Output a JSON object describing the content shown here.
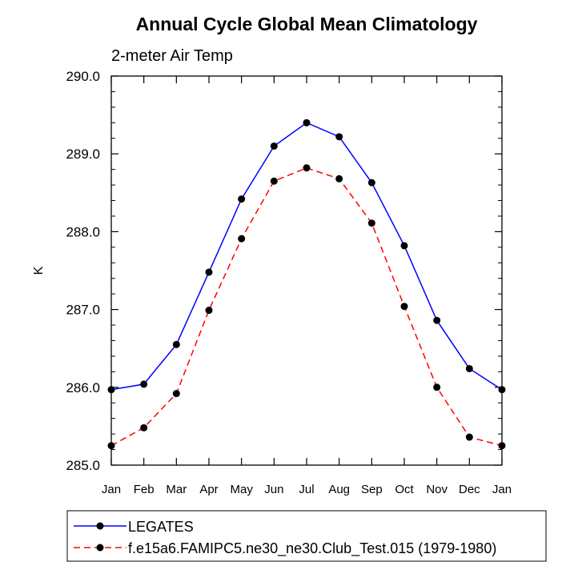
{
  "chart_data": {
    "type": "line",
    "title": "Annual Cycle Global Mean Climatology",
    "subtitle": "2-meter Air Temp",
    "ylabel": "K",
    "xlabel": "",
    "categories": [
      "Jan",
      "Feb",
      "Mar",
      "Apr",
      "May",
      "Jun",
      "Jul",
      "Aug",
      "Sep",
      "Oct",
      "Nov",
      "Dec",
      "Jan"
    ],
    "ylim": [
      285.0,
      290.0
    ],
    "yticks": [
      285.0,
      286.0,
      287.0,
      288.0,
      289.0,
      290.0
    ],
    "ytick_labels": [
      "285.0",
      "286.0",
      "287.0",
      "288.0",
      "289.0",
      "290.0"
    ],
    "grid": false,
    "legend_position": "bottom",
    "series": [
      {
        "name": "LEGATES",
        "color": "#0000ff",
        "dash": "solid",
        "values": [
          285.97,
          286.04,
          286.55,
          287.48,
          288.42,
          289.1,
          289.4,
          289.22,
          288.63,
          287.82,
          286.86,
          286.24,
          285.97
        ]
      },
      {
        "name": "f.e15a6.FAMIPC5.ne30_ne30.Club_Test.015 (1979-1980)",
        "color": "#ff0000",
        "dash": "dashed",
        "values": [
          285.25,
          285.48,
          285.92,
          286.99,
          287.91,
          288.65,
          288.82,
          288.68,
          288.11,
          287.04,
          286.0,
          285.36,
          285.25
        ]
      }
    ]
  }
}
